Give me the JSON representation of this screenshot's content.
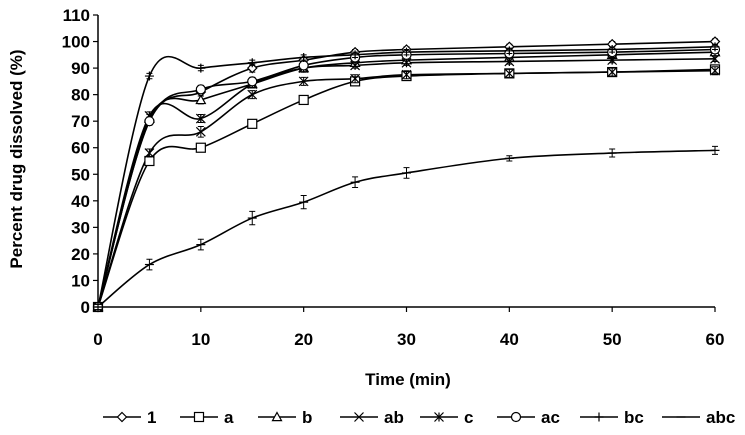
{
  "chart_data": {
    "type": "line",
    "title": "",
    "xlabel": "Time (min)",
    "ylabel": "Percent drug dissolved (%)",
    "xlim": [
      0,
      60
    ],
    "ylim": [
      0,
      110
    ],
    "xticks": [
      0,
      10,
      20,
      30,
      40,
      50,
      60
    ],
    "yticks": [
      0,
      10,
      20,
      30,
      40,
      50,
      60,
      70,
      80,
      90,
      100,
      110
    ],
    "grid": false,
    "legend_position": "bottom",
    "x": [
      0,
      5,
      10,
      15,
      20,
      25,
      30,
      40,
      50,
      60
    ],
    "series": [
      {
        "name": "1",
        "marker": "diamond",
        "values": [
          0,
          70,
          81,
          90,
          93,
          96,
          97,
          98,
          99,
          100
        ],
        "error": [
          1,
          1.5,
          1.5,
          1.5,
          1,
          1,
          1,
          1,
          1,
          1
        ]
      },
      {
        "name": "a",
        "marker": "square",
        "values": [
          0,
          55,
          60,
          69,
          78,
          85,
          87,
          88,
          88.5,
          89.5
        ],
        "error": [
          1,
          1.5,
          1.5,
          1.5,
          1.5,
          1.5,
          1.5,
          1.5,
          1.5,
          1.5
        ]
      },
      {
        "name": "b",
        "marker": "triangle",
        "values": [
          0,
          71,
          78,
          84,
          90,
          92,
          93,
          94,
          95,
          96
        ],
        "error": [
          1,
          1.5,
          1.5,
          1.5,
          1.5,
          1,
          1,
          1,
          1,
          1
        ]
      },
      {
        "name": "ab",
        "marker": "x",
        "values": [
          0,
          58,
          66,
          80,
          85,
          86,
          87.5,
          88,
          88.5,
          89
        ],
        "error": [
          1,
          1.5,
          2,
          1.5,
          1.5,
          1.5,
          1.5,
          1.5,
          1.5,
          1.5
        ]
      },
      {
        "name": "c",
        "marker": "asterisk",
        "values": [
          0,
          72,
          71,
          84,
          90,
          91,
          92,
          92.5,
          93,
          93.5
        ],
        "error": [
          1,
          1.5,
          1.5,
          1.5,
          1.5,
          1,
          1,
          1,
          1,
          1
        ]
      },
      {
        "name": "ac",
        "marker": "circle",
        "values": [
          0,
          70,
          82,
          85,
          91,
          94,
          95,
          95.5,
          96,
          97
        ],
        "error": [
          1,
          1.5,
          1.5,
          1.5,
          1,
          1,
          1,
          1,
          1,
          1
        ]
      },
      {
        "name": "bc",
        "marker": "plus",
        "values": [
          0,
          87,
          90,
          92,
          94,
          95,
          96,
          96.5,
          97,
          98
        ],
        "error": [
          1,
          1,
          1,
          1,
          1,
          1,
          1,
          1,
          1,
          1
        ]
      },
      {
        "name": "abc",
        "marker": "dash",
        "values": [
          0,
          16,
          23.5,
          33.5,
          39.5,
          47,
          50.5,
          56,
          58,
          59
        ],
        "error": [
          1,
          2,
          2,
          2.5,
          2.5,
          2,
          2,
          1,
          1.5,
          1.5
        ]
      }
    ]
  }
}
